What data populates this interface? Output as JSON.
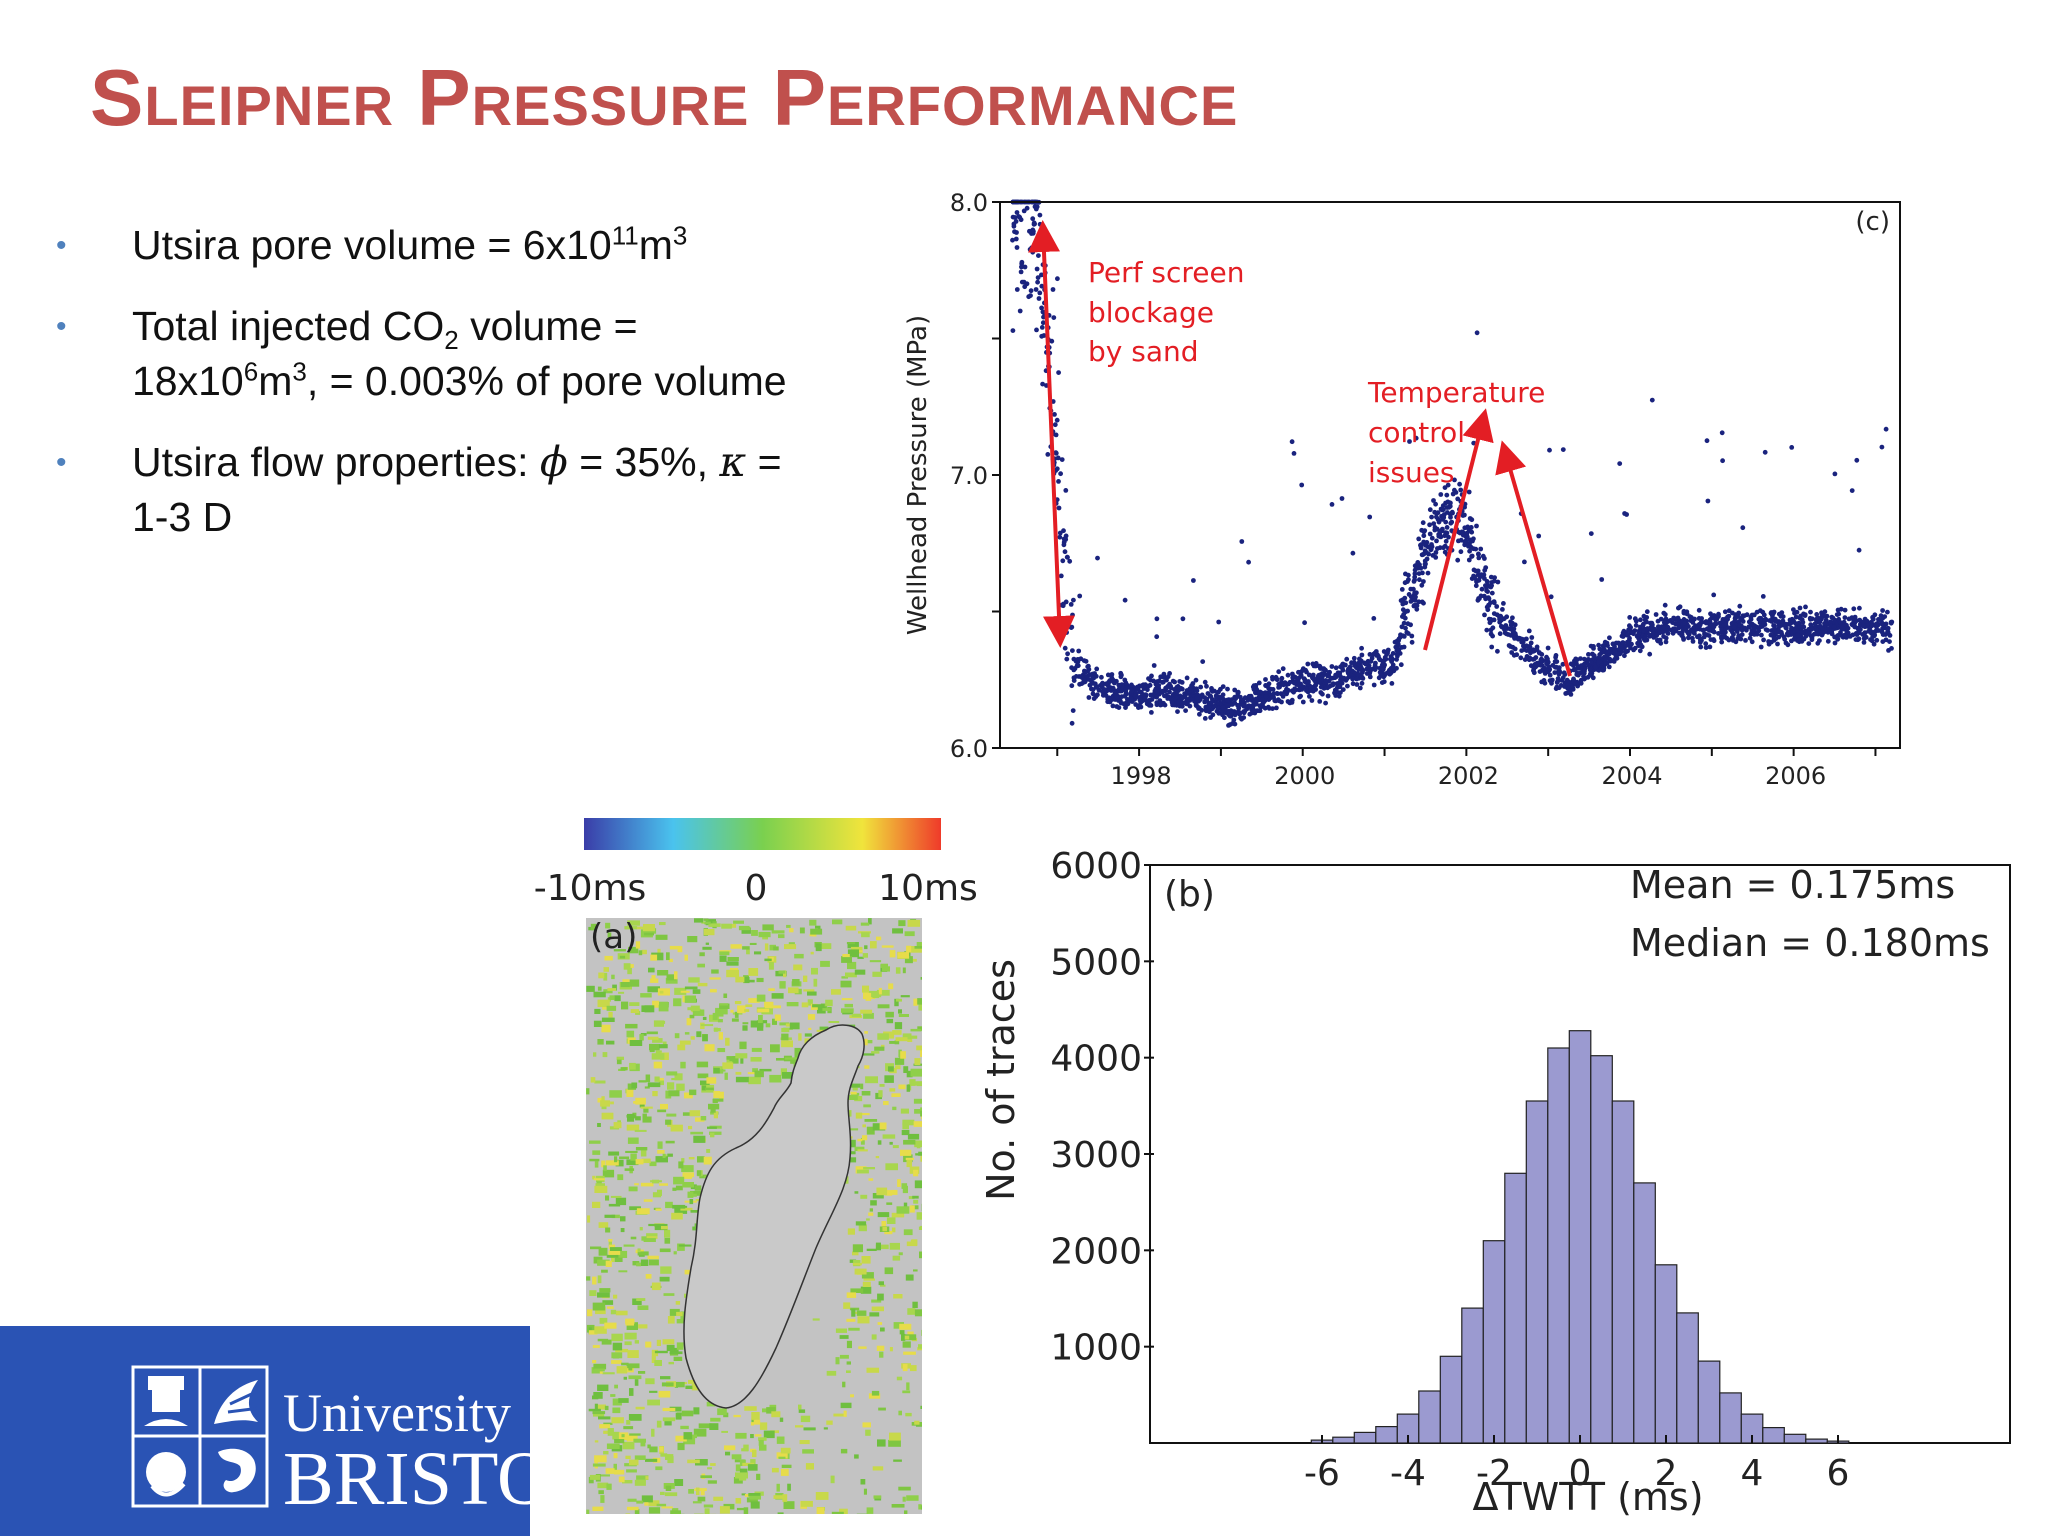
{
  "slide": {
    "title": "Sleipner Pressure Performance",
    "bullets": [
      {
        "pre": "Utsira pore volume = 6x10",
        "sup1": "11",
        "mid": "m",
        "sup2": "3"
      },
      {
        "pre": "Total injected CO",
        "sub": "2",
        "mid": " volume = 18x10",
        "sup1": "6",
        "mid2": "m",
        "sup2": "3",
        "post": ", = 0.003% of pore volume"
      },
      {
        "pre": "Utsira flow properties: ",
        "phi": "ϕ",
        "mid": " = 35%, ",
        "kappa": "κ",
        "post": " = 1-3 D"
      }
    ]
  },
  "logo": {
    "line1": "University",
    "line2": "BRISTO"
  },
  "colorbar": {
    "labels": [
      "-10ms",
      "0",
      "10ms"
    ],
    "colors": [
      "#3a3da8",
      "#4ac3ee",
      "#7ad04f",
      "#f0e43c",
      "#ef3a2a"
    ]
  },
  "map_panel": {
    "label": "(a)"
  },
  "chart_data": [
    {
      "type": "scatter",
      "panel_label": "(c)",
      "ylabel": "Wellhead Pressure (MPa)",
      "ylim": [
        6.0,
        8.0
      ],
      "yticks": [
        "6.0",
        "7.0",
        "8.0"
      ],
      "xlim": [
        1996.3,
        2007.3
      ],
      "xticks": [
        "1998",
        "2000",
        "2002",
        "2004",
        "2006"
      ],
      "xtick_values": [
        1998,
        2000,
        2002,
        2004,
        2006
      ],
      "point_color": "#1a237e",
      "annotations": [
        {
          "text": [
            "Perf screen",
            "blockage",
            "by sand"
          ],
          "color": "#e31e24"
        },
        {
          "text": [
            "Temperature",
            "control",
            "issues"
          ],
          "color": "#e31e24"
        }
      ],
      "trend": [
        [
          1996.45,
          8.0
        ],
        [
          1996.7,
          7.9
        ],
        [
          1996.9,
          7.4
        ],
        [
          1997.05,
          6.8
        ],
        [
          1997.2,
          6.3
        ],
        [
          1997.6,
          6.22
        ],
        [
          1998.0,
          6.2
        ],
        [
          1998.4,
          6.2
        ],
        [
          1998.8,
          6.18
        ],
        [
          1999.2,
          6.14
        ],
        [
          1999.6,
          6.2
        ],
        [
          2000.0,
          6.24
        ],
        [
          2000.4,
          6.25
        ],
        [
          2000.8,
          6.3
        ],
        [
          2001.1,
          6.3
        ],
        [
          2001.4,
          6.62
        ],
        [
          2001.6,
          6.8
        ],
        [
          2001.8,
          6.85
        ],
        [
          2002.0,
          6.82
        ],
        [
          2002.3,
          6.5
        ],
        [
          2002.6,
          6.4
        ],
        [
          2002.9,
          6.32
        ],
        [
          2003.2,
          6.24
        ],
        [
          2003.6,
          6.32
        ],
        [
          2004.0,
          6.4
        ],
        [
          2004.5,
          6.45
        ],
        [
          2005.0,
          6.44
        ],
        [
          2005.5,
          6.45
        ],
        [
          2006.0,
          6.44
        ],
        [
          2006.5,
          6.45
        ],
        [
          2007.2,
          6.43
        ]
      ]
    },
    {
      "type": "bar",
      "panel_label": "(b)",
      "stats": [
        "Mean = 0.175ms",
        "Median = 0.180ms"
      ],
      "xlabel": "ΔTWTT (ms)",
      "ylabel": "No. of traces",
      "ylim": [
        0,
        6000
      ],
      "yticks": [
        1000,
        2000,
        3000,
        4000,
        5000,
        6000
      ],
      "xticks": [
        -6,
        -4,
        -2,
        0,
        2,
        4,
        6
      ],
      "xlim": [
        -10,
        10
      ],
      "bin_width": 0.5,
      "bar_color": "#9b9ad0",
      "bins": [
        {
          "x": -6.0,
          "v": 30
        },
        {
          "x": -5.5,
          "v": 60
        },
        {
          "x": -5.0,
          "v": 110
        },
        {
          "x": -4.5,
          "v": 170
        },
        {
          "x": -4.0,
          "v": 300
        },
        {
          "x": -3.5,
          "v": 540
        },
        {
          "x": -3.0,
          "v": 900
        },
        {
          "x": -2.5,
          "v": 1400
        },
        {
          "x": -2.0,
          "v": 2100
        },
        {
          "x": -1.5,
          "v": 2800
        },
        {
          "x": -1.0,
          "v": 3550
        },
        {
          "x": -0.5,
          "v": 4100
        },
        {
          "x": 0.0,
          "v": 4280
        },
        {
          "x": 0.5,
          "v": 4020
        },
        {
          "x": 1.0,
          "v": 3550
        },
        {
          "x": 1.5,
          "v": 2700
        },
        {
          "x": 2.0,
          "v": 1850
        },
        {
          "x": 2.5,
          "v": 1350
        },
        {
          "x": 3.0,
          "v": 850
        },
        {
          "x": 3.5,
          "v": 520
        },
        {
          "x": 4.0,
          "v": 300
        },
        {
          "x": 4.5,
          "v": 160
        },
        {
          "x": 5.0,
          "v": 90
        },
        {
          "x": 5.5,
          "v": 40
        },
        {
          "x": 6.0,
          "v": 20
        }
      ]
    }
  ]
}
